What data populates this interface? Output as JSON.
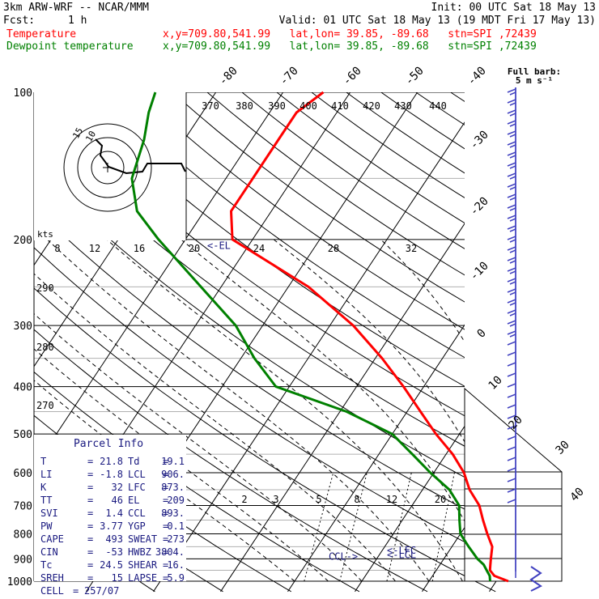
{
  "header": {
    "model": "3km ARW-WRF -- NCAR/MMM",
    "init": "Init: 00 UTC Sat 18 May 13",
    "fcst_label": "Fcst:",
    "fcst_value": "1 h",
    "valid": "Valid: 01 UTC Sat 18 May 13 (19 MDT Fri 17 May 13)",
    "temp_label": "Temperature",
    "dew_label": "Dewpoint temperature",
    "location": "x,y=709.80,541.99   lat,lon= 39.85, -89.68   stn=SPI ,72439"
  },
  "colors": {
    "temperature": "#ff0000",
    "dewpoint": "#008000",
    "barbs": "#4040c0",
    "parcel": "#1a1a80"
  },
  "chart_data": {
    "type": "line",
    "subtype": "skew-T log-p sounding",
    "y_axis": {
      "scale": "log",
      "label_values": [
        "100",
        "200",
        "300",
        "400",
        "500",
        "600",
        "700",
        "800",
        "900",
        "1000"
      ]
    },
    "isotherm_labels": [
      "-80",
      "-70",
      "-60",
      "-50",
      "-40",
      "-30",
      "-20",
      "-10",
      "0",
      "10",
      "20",
      "30",
      "40"
    ],
    "dry_adiabat_labels": [
      "270",
      "280",
      "290"
    ],
    "mixing_ratio_labels": [
      "2",
      "3",
      "5",
      "8",
      "12",
      "20"
    ],
    "barb_legend": {
      "title": "Full barb:",
      "value": "5 m s⁻¹"
    },
    "hodograph": {
      "units": "kts",
      "theta_labels": [
        "370",
        "380",
        "390",
        "400",
        "410",
        "420",
        "430",
        "440"
      ],
      "speed_labels": [
        "8",
        "12",
        "16",
        "20",
        "24",
        "28",
        "32"
      ],
      "ring_labels": [
        "15",
        "10"
      ]
    },
    "levels": {
      "el": {
        "label": "<-EL",
        "pressure": 205,
        "temp": 20
      },
      "lfc": {
        "label": "<-LFC",
        "pressure": 865
      },
      "lcl": {
        "label": "<-LCL",
        "pressure": 900
      },
      "ccl": {
        "label": "CCL->",
        "pressure": 900
      }
    },
    "series": [
      {
        "name": "Temperature",
        "points": [
          [
            1000,
            21.8
          ],
          [
            975,
            19.2
          ],
          [
            950,
            18
          ],
          [
            925,
            17.5
          ],
          [
            900,
            17
          ],
          [
            850,
            16
          ],
          [
            800,
            14
          ],
          [
            750,
            12
          ],
          [
            700,
            10
          ],
          [
            650,
            7
          ],
          [
            600,
            4.5
          ],
          [
            550,
            1
          ],
          [
            500,
            -3.5
          ],
          [
            450,
            -8
          ],
          [
            400,
            -13
          ],
          [
            350,
            -19
          ],
          [
            300,
            -26.5
          ],
          [
            250,
            -37
          ],
          [
            200,
            -53
          ],
          [
            175,
            -56
          ],
          [
            150,
            -56
          ],
          [
            125,
            -56
          ],
          [
            110,
            -56
          ],
          [
            100,
            -54
          ]
        ]
      },
      {
        "name": "Dewpoint temperature",
        "points": [
          [
            1000,
            19.1
          ],
          [
            975,
            18.5
          ],
          [
            950,
            17.5
          ],
          [
            925,
            16.5
          ],
          [
            900,
            15
          ],
          [
            850,
            12.5
          ],
          [
            800,
            10
          ],
          [
            750,
            8.5
          ],
          [
            700,
            7
          ],
          [
            650,
            4
          ],
          [
            600,
            -0.5
          ],
          [
            550,
            -5
          ],
          [
            500,
            -10
          ],
          [
            450,
            -19
          ],
          [
            400,
            -32
          ],
          [
            350,
            -38
          ],
          [
            300,
            -44
          ],
          [
            250,
            -53
          ],
          [
            200,
            -64
          ],
          [
            175,
            -70
          ],
          [
            150,
            -74
          ],
          [
            125,
            -76
          ],
          [
            110,
            -78
          ],
          [
            100,
            -79
          ]
        ]
      }
    ]
  },
  "parcel_info": {
    "title": "Parcel Info",
    "rows": [
      {
        "l1": "T",
        "v1": "21.8",
        "l2": "Td",
        "v2": "19.1"
      },
      {
        "l1": "LI",
        "v1": "-1.8",
        "l2": "LCL",
        "v2": "906."
      },
      {
        "l1": "K",
        "v1": "32",
        "l2": "LFC",
        "v2": "873."
      },
      {
        "l1": "TT",
        "v1": "46",
        "l2": "EL",
        "v2": "209"
      },
      {
        "l1": "SVI",
        "v1": "1.4",
        "l2": "CCL",
        "v2": "893."
      },
      {
        "l1": "PW",
        "v1": "3.77",
        "l2": "YGP",
        "v2": "0.1"
      },
      {
        "l1": "CAPE",
        "v1": "493",
        "l2": "SWEAT",
        "v2": "273"
      },
      {
        "l1": "CIN",
        "v1": "-53",
        "l2": "HWBZ",
        "v2": "3804."
      },
      {
        "l1": "Tc",
        "v1": "24.5",
        "l2": "SHEAR",
        "v2": "16."
      },
      {
        "l1": "SREH",
        "v1": "15",
        "l2": "LAPSE",
        "v2": "5.9"
      }
    ],
    "cell_label": "CELL",
    "cell_value": "257/07"
  }
}
